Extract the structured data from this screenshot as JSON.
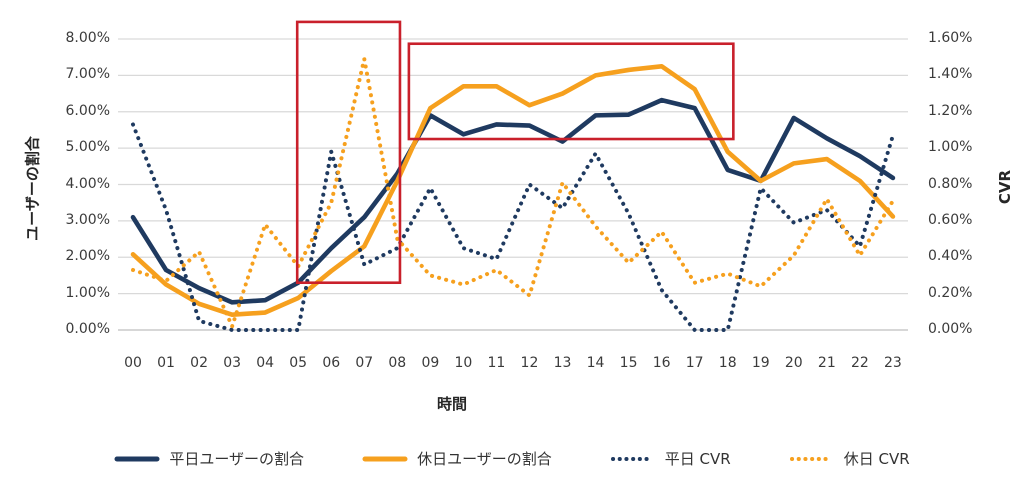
{
  "axes": {
    "left_title": "ユーザーの割合",
    "right_title": "CVR",
    "x_title": "時間",
    "left_ticks": [
      "8.00%",
      "7.00%",
      "6.00%",
      "5.00%",
      "4.00%",
      "3.00%",
      "2.00%",
      "1.00%",
      "0.00%"
    ],
    "right_ticks": [
      "1.60%",
      "1.40%",
      "1.20%",
      "1.00%",
      "0.80%",
      "0.60%",
      "0.40%",
      "0.20%",
      "0.00%"
    ],
    "x_ticks": [
      "00",
      "01",
      "02",
      "03",
      "04",
      "05",
      "06",
      "07",
      "08",
      "09",
      "10",
      "11",
      "12",
      "13",
      "14",
      "15",
      "16",
      "17",
      "18",
      "19",
      "20",
      "21",
      "22",
      "23"
    ]
  },
  "colors": {
    "navy": "#1f3a60",
    "orange": "#f6a01e",
    "highlight_red": "#c9202b",
    "gridline": "#d9d9d9",
    "baseline": "#bfbfbf"
  },
  "legend": [
    {
      "label": "平日ユーザーの割合",
      "color": "#1f3a60",
      "style": "solid"
    },
    {
      "label": "休日ユーザーの割合",
      "color": "#f6a01e",
      "style": "solid"
    },
    {
      "label": "平日 CVR",
      "color": "#1f3a60",
      "style": "dotted"
    },
    {
      "label": "休日 CVR",
      "color": "#f6a01e",
      "style": "dotted"
    }
  ],
  "chart_data": {
    "type": "line",
    "x": [
      "00",
      "01",
      "02",
      "03",
      "04",
      "05",
      "06",
      "07",
      "08",
      "09",
      "10",
      "11",
      "12",
      "13",
      "14",
      "15",
      "16",
      "17",
      "18",
      "19",
      "20",
      "21",
      "22",
      "23"
    ],
    "xlabel": "時間",
    "ylabel_left": "ユーザーの割合",
    "ylabel_right": "CVR",
    "ylim_left": [
      0,
      8
    ],
    "ylim_right": [
      0,
      1.6
    ],
    "grid": true,
    "legend_position": "bottom",
    "series": [
      {
        "name": "平日ユーザーの割合",
        "axis": "left",
        "style": "solid",
        "color": "#1f3a60",
        "values": [
          3.1,
          1.65,
          1.15,
          0.76,
          0.82,
          1.3,
          2.25,
          3.1,
          4.3,
          5.9,
          5.38,
          5.65,
          5.62,
          5.18,
          5.9,
          5.92,
          6.32,
          6.1,
          4.4,
          4.1,
          5.83,
          5.27,
          4.78,
          4.18
        ]
      },
      {
        "name": "休日ユーザーの割合",
        "axis": "left",
        "style": "solid",
        "color": "#f6a01e",
        "values": [
          2.08,
          1.25,
          0.72,
          0.42,
          0.48,
          0.88,
          1.62,
          2.3,
          4.1,
          6.1,
          6.7,
          6.7,
          6.18,
          6.5,
          7.0,
          7.15,
          7.25,
          6.62,
          4.9,
          4.1,
          4.58,
          4.7,
          4.1,
          3.12
        ]
      },
      {
        "name": "平日 CVR",
        "axis": "right",
        "style": "dotted",
        "color": "#1f3a60",
        "values": [
          1.13,
          0.66,
          0.05,
          0.0,
          0.0,
          0.0,
          0.98,
          0.36,
          0.45,
          0.78,
          0.45,
          0.39,
          0.8,
          0.67,
          0.97,
          0.64,
          0.22,
          0.0,
          0.0,
          0.78,
          0.59,
          0.66,
          0.46,
          1.07
        ]
      },
      {
        "name": "休日 CVR",
        "axis": "right",
        "style": "dotted",
        "color": "#f6a01e",
        "values": [
          0.33,
          0.27,
          0.43,
          0.02,
          0.58,
          0.35,
          0.7,
          1.49,
          0.5,
          0.3,
          0.25,
          0.33,
          0.19,
          0.81,
          0.57,
          0.37,
          0.54,
          0.26,
          0.31,
          0.24,
          0.41,
          0.72,
          0.41,
          0.71
        ]
      }
    ],
    "annotations": {
      "boxes": [
        {
          "name": "highlight-box-morning",
          "x_from_hour": 4.97,
          "x_to_hour": 8.08,
          "y_from_left_val": 1.3,
          "y_to_left_val": 8.47
        },
        {
          "name": "highlight-box-daytime",
          "x_from_hour": 8.35,
          "x_to_hour": 18.17,
          "y_from_left_val": 5.25,
          "y_to_left_val": 7.87
        }
      ]
    }
  }
}
